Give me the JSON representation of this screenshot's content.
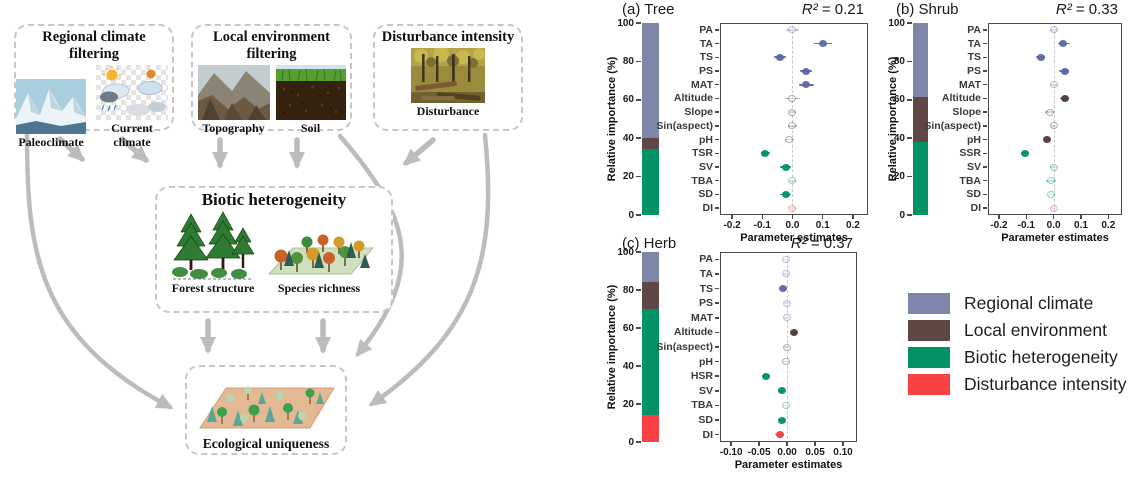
{
  "diagram": {
    "boxes": [
      {
        "title": "Regional climate filtering",
        "items": [
          "Paleoclimate",
          "Current climate"
        ]
      },
      {
        "title": "Local environment filtering",
        "items": [
          "Topography",
          "Soil"
        ]
      },
      {
        "title": "Disturbance intensity",
        "items": [
          "Disturbance"
        ]
      },
      {
        "title": "Biotic heterogeneity",
        "items": [
          "Forest structure",
          "Species richness"
        ]
      },
      {
        "title": "Ecological uniqueness",
        "items": []
      }
    ]
  },
  "legend": {
    "items": [
      {
        "label": "Regional climate",
        "color": "#7e87aa"
      },
      {
        "label": "Local environment",
        "color": "#5f4744"
      },
      {
        "label": "Biotic heterogeneity",
        "color": "#029266"
      },
      {
        "label": "Disturbance intensity",
        "color": "#fa4244"
      }
    ]
  },
  "colors": {
    "regional": "#7e87aa",
    "local": "#5f4744",
    "biotic": "#029266",
    "disturbance": "#fa4244",
    "regional_point": "#5b67a8",
    "local_point": "#4f3a36",
    "biotic_point": "#00916b",
    "disturbance_point": "#f03e3e",
    "arrow": "#bcbcbc",
    "box_border": "#c6c6c6"
  },
  "chart_data": [
    {
      "type": "scatter",
      "subtype": "forest_plot_with_importance_bar",
      "title": "(a) Tree",
      "r2_sym": "R²",
      "r2_val": "= 0.21",
      "xlabel": "Parameter estimates",
      "ylabel": "Relative importance (%)",
      "xlim": [
        -0.24,
        0.25
      ],
      "xticks": [
        -0.2,
        -0.1,
        0.0,
        0.1,
        0.2
      ],
      "xtick_labels": [
        "-0.2",
        "-0.1",
        "0.0",
        "0.1",
        "0.2"
      ],
      "ytick_labels": [
        "100",
        "80",
        "60",
        "40",
        "20",
        "0"
      ],
      "importance": [
        {
          "group": "regional",
          "value": 60
        },
        {
          "group": "local",
          "value": 5.5
        },
        {
          "group": "biotic",
          "value": 34.5
        },
        {
          "group": "disturbance",
          "value": 0
        }
      ],
      "points": [
        {
          "var": "PA",
          "group": "regional",
          "est": 0.0,
          "lo": -0.02,
          "hi": 0.02,
          "sig": false
        },
        {
          "var": "TA",
          "group": "regional",
          "est": 0.1,
          "lo": 0.07,
          "hi": 0.13,
          "sig": true
        },
        {
          "var": "TS",
          "group": "regional",
          "est": -0.04,
          "lo": -0.06,
          "hi": -0.02,
          "sig": true
        },
        {
          "var": "PS",
          "group": "regional",
          "est": 0.045,
          "lo": 0.025,
          "hi": 0.065,
          "sig": true
        },
        {
          "var": "MAT",
          "group": "regional",
          "est": 0.045,
          "lo": 0.02,
          "hi": 0.07,
          "sig": true
        },
        {
          "var": "Altitude",
          "group": "local",
          "est": 0.0,
          "lo": -0.025,
          "hi": 0.025,
          "sig": false
        },
        {
          "var": "Slope",
          "group": "local",
          "est": 0.0,
          "lo": -0.012,
          "hi": 0.012,
          "sig": false
        },
        {
          "var": "Sin(aspect)",
          "group": "local",
          "est": 0.0,
          "lo": -0.015,
          "hi": 0.015,
          "sig": false
        },
        {
          "var": "pH",
          "group": "local",
          "est": -0.01,
          "lo": -0.025,
          "hi": 0.005,
          "sig": false
        },
        {
          "var": "TSR",
          "group": "biotic",
          "est": -0.09,
          "lo": -0.105,
          "hi": -0.075,
          "sig": true
        },
        {
          "var": "SV",
          "group": "biotic",
          "est": -0.02,
          "lo": -0.04,
          "hi": -0.005,
          "sig": true
        },
        {
          "var": "TBA",
          "group": "biotic",
          "est": 0.0,
          "lo": -0.012,
          "hi": 0.012,
          "sig": false
        },
        {
          "var": "SD",
          "group": "biotic",
          "est": -0.02,
          "lo": -0.04,
          "hi": -0.005,
          "sig": true
        },
        {
          "var": "DI",
          "group": "disturbance",
          "est": 0.0,
          "lo": -0.01,
          "hi": 0.01,
          "sig": false
        }
      ]
    },
    {
      "type": "scatter",
      "subtype": "forest_plot_with_importance_bar",
      "title": "(b) Shrub",
      "r2_sym": "R²",
      "r2_val": "= 0.33",
      "xlabel": "Parameter estimates",
      "ylabel": "Relative importance (%)",
      "xlim": [
        -0.24,
        0.25
      ],
      "xticks": [
        -0.2,
        -0.1,
        0.0,
        0.1,
        0.2
      ],
      "xtick_labels": [
        "-0.2",
        "-0.1",
        "0.0",
        "0.1",
        "0.2"
      ],
      "ytick_labels": [
        "100",
        "80",
        "60",
        "40",
        "20",
        "0"
      ],
      "importance": [
        {
          "group": "regional",
          "value": 38.5
        },
        {
          "group": "local",
          "value": 23.5
        },
        {
          "group": "biotic",
          "value": 38
        },
        {
          "group": "disturbance",
          "value": 0
        }
      ],
      "points": [
        {
          "var": "PA",
          "group": "regional",
          "est": 0.0,
          "lo": -0.015,
          "hi": 0.015,
          "sig": false
        },
        {
          "var": "TA",
          "group": "regional",
          "est": 0.035,
          "lo": 0.015,
          "hi": 0.06,
          "sig": true
        },
        {
          "var": "TS",
          "group": "regional",
          "est": -0.045,
          "lo": -0.065,
          "hi": -0.03,
          "sig": true
        },
        {
          "var": "PS",
          "group": "regional",
          "est": 0.04,
          "lo": 0.02,
          "hi": 0.055,
          "sig": true
        },
        {
          "var": "MAT",
          "group": "regional",
          "est": 0.0,
          "lo": -0.015,
          "hi": 0.015,
          "sig": false
        },
        {
          "var": "Altitude",
          "group": "local",
          "est": 0.04,
          "lo": 0.025,
          "hi": 0.055,
          "sig": true
        },
        {
          "var": "Slope",
          "group": "local",
          "est": -0.015,
          "lo": -0.03,
          "hi": 0.0,
          "sig": false
        },
        {
          "var": "Sin(aspect)",
          "group": "local",
          "est": 0.0,
          "lo": -0.01,
          "hi": 0.01,
          "sig": false
        },
        {
          "var": "pH",
          "group": "local",
          "est": -0.025,
          "lo": -0.04,
          "hi": -0.012,
          "sig": true
        },
        {
          "var": "SSR",
          "group": "biotic",
          "est": -0.105,
          "lo": -0.12,
          "hi": -0.09,
          "sig": true
        },
        {
          "var": "SV",
          "group": "biotic",
          "est": 0.0,
          "lo": -0.012,
          "hi": 0.012,
          "sig": false
        },
        {
          "var": "TBA",
          "group": "biotic",
          "est": -0.01,
          "lo": -0.028,
          "hi": 0.008,
          "sig": false
        },
        {
          "var": "SD",
          "group": "biotic",
          "est": -0.008,
          "lo": -0.02,
          "hi": 0.004,
          "sig": false
        },
        {
          "var": "DI",
          "group": "disturbance",
          "est": 0.0,
          "lo": -0.008,
          "hi": 0.008,
          "sig": false
        }
      ]
    },
    {
      "type": "scatter",
      "subtype": "forest_plot_with_importance_bar",
      "title": "(c) Herb",
      "r2_sym": "R²",
      "r2_val": "= 0.37",
      "xlabel": "Parameter estimates",
      "ylabel": "Relative importance (%)",
      "xlim": [
        -0.12,
        0.125
      ],
      "xticks": [
        -0.1,
        -0.05,
        0.0,
        0.05,
        0.1
      ],
      "xtick_labels": [
        "-0.10",
        "-0.05",
        "0.00",
        "0.05",
        "0.10"
      ],
      "ytick_labels": [
        "100",
        "80",
        "60",
        "40",
        "20",
        "0"
      ],
      "importance": [
        {
          "group": "regional",
          "value": 16
        },
        {
          "group": "local",
          "value": 14
        },
        {
          "group": "biotic",
          "value": 56
        },
        {
          "group": "disturbance",
          "value": 14
        }
      ],
      "points": [
        {
          "var": "PA",
          "group": "regional",
          "est": -0.002,
          "lo": -0.008,
          "hi": 0.004,
          "sig": false
        },
        {
          "var": "TA",
          "group": "regional",
          "est": -0.002,
          "lo": -0.007,
          "hi": 0.003,
          "sig": false
        },
        {
          "var": "TS",
          "group": "regional",
          "est": -0.008,
          "lo": -0.014,
          "hi": -0.002,
          "sig": true
        },
        {
          "var": "PS",
          "group": "regional",
          "est": 0.0,
          "lo": -0.005,
          "hi": 0.005,
          "sig": false
        },
        {
          "var": "MAT",
          "group": "regional",
          "est": -0.001,
          "lo": -0.006,
          "hi": 0.004,
          "sig": false
        },
        {
          "var": "Altitude",
          "group": "local",
          "est": 0.013,
          "lo": 0.007,
          "hi": 0.019,
          "sig": true
        },
        {
          "var": "Sin(aspect)",
          "group": "local",
          "est": -0.001,
          "lo": -0.006,
          "hi": 0.004,
          "sig": false
        },
        {
          "var": "pH",
          "group": "local",
          "est": -0.002,
          "lo": -0.007,
          "hi": 0.003,
          "sig": false
        },
        {
          "var": "HSR",
          "group": "biotic",
          "est": -0.038,
          "lo": -0.045,
          "hi": -0.031,
          "sig": true
        },
        {
          "var": "SV",
          "group": "biotic",
          "est": -0.01,
          "lo": -0.016,
          "hi": -0.004,
          "sig": true
        },
        {
          "var": "TBA",
          "group": "biotic",
          "est": -0.002,
          "lo": -0.008,
          "hi": 0.004,
          "sig": false
        },
        {
          "var": "SD",
          "group": "biotic",
          "est": -0.01,
          "lo": -0.016,
          "hi": -0.004,
          "sig": true
        },
        {
          "var": "DI",
          "group": "disturbance",
          "est": -0.013,
          "lo": -0.021,
          "hi": -0.005,
          "sig": true
        }
      ]
    }
  ]
}
